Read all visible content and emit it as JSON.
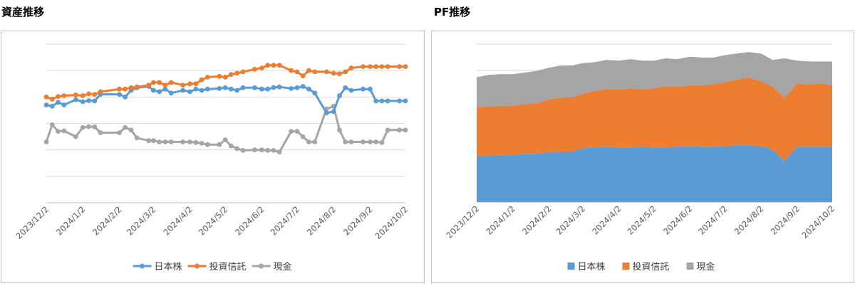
{
  "left_title": "資産推移",
  "right_title": "PF推移",
  "chart_data": [
    {
      "type": "line",
      "title": "",
      "xlabel": "",
      "ylabel": "",
      "ylim": [
        0,
        6
      ],
      "grid": true,
      "y_tick_labels_shown": false,
      "legend_position": "bottom",
      "x_tick_labels": [
        "2023/12/2",
        "2024/1/2",
        "2024/2/2",
        "2024/3/2",
        "2024/4/2",
        "2024/5/2",
        "2024/6/2",
        "2024/7/2",
        "2024/8/2",
        "2024/9/2",
        "2024/10/2"
      ],
      "x_start": "2023/12/2",
      "x_end": "2024/10/2",
      "series": [
        {
          "name": "日本株",
          "color": "#5b9bd5",
          "x": [
            "2023/12/2",
            "2023/12/7",
            "2023/12/12",
            "2023/12/17",
            "2023/12/27",
            "2024/1/2",
            "2024/1/7",
            "2024/1/12",
            "2024/1/17",
            "2024/2/2",
            "2024/2/7",
            "2024/2/12",
            "2024/2/17",
            "2024/2/27",
            "2024/3/2",
            "2024/3/7",
            "2024/3/12",
            "2024/3/17",
            "2024/3/27",
            "2024/4/2",
            "2024/4/7",
            "2024/4/12",
            "2024/4/17",
            "2024/4/27",
            "2024/5/2",
            "2024/5/7",
            "2024/5/12",
            "2024/5/17",
            "2024/5/27",
            "2024/6/2",
            "2024/6/7",
            "2024/6/12",
            "2024/6/17",
            "2024/6/27",
            "2024/7/2",
            "2024/7/7",
            "2024/7/12",
            "2024/7/17",
            "2024/7/27",
            "2024/8/2",
            "2024/8/7",
            "2024/8/12",
            "2024/8/17",
            "2024/8/27",
            "2024/9/2",
            "2024/9/7",
            "2024/9/12",
            "2024/9/17",
            "2024/9/27",
            "2024/10/2"
          ],
          "values": [
            3.7,
            3.65,
            3.8,
            3.7,
            3.9,
            3.82,
            3.86,
            3.85,
            4.1,
            4.1,
            4.0,
            4.25,
            4.35,
            4.4,
            4.25,
            4.2,
            4.3,
            4.15,
            4.25,
            4.2,
            4.3,
            4.25,
            4.3,
            4.32,
            4.35,
            4.3,
            4.25,
            4.35,
            4.35,
            4.3,
            4.3,
            4.36,
            4.38,
            4.32,
            4.35,
            4.4,
            4.3,
            4.15,
            3.4,
            3.45,
            4.05,
            4.35,
            4.25,
            4.3,
            4.3,
            3.85,
            3.85,
            3.85,
            3.85,
            3.85
          ]
        },
        {
          "name": "投資信託",
          "color": "#ed7d31",
          "x": [
            "2023/12/2",
            "2023/12/7",
            "2023/12/12",
            "2023/12/17",
            "2023/12/27",
            "2024/1/2",
            "2024/1/7",
            "2024/1/12",
            "2024/1/17",
            "2024/2/2",
            "2024/2/7",
            "2024/2/12",
            "2024/2/17",
            "2024/2/27",
            "2024/3/2",
            "2024/3/7",
            "2024/3/12",
            "2024/3/17",
            "2024/3/27",
            "2024/4/2",
            "2024/4/7",
            "2024/4/12",
            "2024/4/17",
            "2024/4/27",
            "2024/5/2",
            "2024/5/7",
            "2024/5/12",
            "2024/5/17",
            "2024/5/27",
            "2024/6/2",
            "2024/6/7",
            "2024/6/12",
            "2024/6/17",
            "2024/6/27",
            "2024/7/2",
            "2024/7/7",
            "2024/7/12",
            "2024/7/17",
            "2024/7/27",
            "2024/8/2",
            "2024/8/7",
            "2024/8/12",
            "2024/8/17",
            "2024/8/27",
            "2024/9/2",
            "2024/9/7",
            "2024/9/12",
            "2024/9/17",
            "2024/9/27",
            "2024/10/2"
          ],
          "values": [
            4.0,
            3.92,
            4.02,
            4.05,
            4.08,
            4.05,
            4.12,
            4.1,
            4.2,
            4.3,
            4.3,
            4.35,
            4.38,
            4.45,
            4.55,
            4.55,
            4.45,
            4.55,
            4.45,
            4.5,
            4.5,
            4.65,
            4.75,
            4.78,
            4.75,
            4.85,
            4.9,
            4.95,
            5.05,
            5.1,
            5.2,
            5.2,
            5.2,
            5.0,
            4.95,
            4.8,
            5.0,
            4.95,
            4.95,
            4.9,
            4.88,
            4.95,
            5.1,
            5.15,
            5.15,
            5.15,
            5.15,
            5.15,
            5.15,
            5.15
          ]
        },
        {
          "name": "現金",
          "color": "#a5a5a5",
          "x": [
            "2023/12/2",
            "2023/12/7",
            "2023/12/12",
            "2023/12/17",
            "2023/12/27",
            "2024/1/2",
            "2024/1/7",
            "2024/1/12",
            "2024/1/17",
            "2024/2/2",
            "2024/2/7",
            "2024/2/12",
            "2024/2/17",
            "2024/2/27",
            "2024/3/2",
            "2024/3/7",
            "2024/3/12",
            "2024/3/17",
            "2024/3/27",
            "2024/4/2",
            "2024/4/7",
            "2024/4/12",
            "2024/4/17",
            "2024/4/27",
            "2024/5/2",
            "2024/5/7",
            "2024/5/12",
            "2024/5/17",
            "2024/5/27",
            "2024/6/2",
            "2024/6/7",
            "2024/6/12",
            "2024/6/17",
            "2024/6/27",
            "2024/7/2",
            "2024/7/7",
            "2024/7/12",
            "2024/7/17",
            "2024/7/27",
            "2024/8/2",
            "2024/8/7",
            "2024/8/12",
            "2024/8/17",
            "2024/8/27",
            "2024/9/2",
            "2024/9/7",
            "2024/9/12",
            "2024/9/17",
            "2024/9/27",
            "2024/10/2"
          ],
          "values": [
            2.3,
            2.95,
            2.7,
            2.72,
            2.5,
            2.85,
            2.88,
            2.87,
            2.65,
            2.65,
            2.85,
            2.75,
            2.45,
            2.35,
            2.35,
            2.3,
            2.3,
            2.3,
            2.3,
            2.3,
            2.28,
            2.25,
            2.2,
            2.2,
            2.38,
            2.15,
            2.05,
            1.98,
            2.0,
            2.0,
            1.98,
            1.98,
            1.92,
            2.7,
            2.7,
            2.5,
            2.3,
            2.3,
            3.55,
            3.65,
            2.75,
            2.3,
            2.3,
            2.3,
            2.3,
            2.3,
            2.28,
            2.75,
            2.75,
            2.75
          ]
        }
      ]
    },
    {
      "type": "area",
      "stacked": true,
      "title": "",
      "xlabel": "",
      "ylabel": "",
      "ylim": [
        0,
        10
      ],
      "grid": true,
      "y_tick_labels_shown": false,
      "legend_position": "bottom",
      "x_tick_labels": [
        "2023/12/2",
        "2024/1/2",
        "2024/2/2",
        "2024/3/2",
        "2024/4/2",
        "2024/5/2",
        "2024/6/2",
        "2024/7/2",
        "2024/8/2",
        "2024/9/2",
        "2024/10/2"
      ],
      "x_start": "2023/12/2",
      "x_end": "2024/10/2",
      "x": [
        "2023/12/2",
        "2023/12/12",
        "2023/12/22",
        "2024/1/2",
        "2024/1/12",
        "2024/1/22",
        "2024/2/2",
        "2024/2/12",
        "2024/2/22",
        "2024/3/2",
        "2024/3/12",
        "2024/3/22",
        "2024/4/2",
        "2024/4/12",
        "2024/4/22",
        "2024/5/2",
        "2024/5/12",
        "2024/5/22",
        "2024/6/2",
        "2024/6/12",
        "2024/6/22",
        "2024/7/2",
        "2024/7/12",
        "2024/7/22",
        "2024/8/2",
        "2024/8/12",
        "2024/8/22",
        "2024/9/2",
        "2024/9/12",
        "2024/9/22",
        "2024/10/2"
      ],
      "series": [
        {
          "name": "日本株",
          "color": "#5b9bd5",
          "values": [
            2.9,
            2.95,
            2.95,
            3.0,
            3.05,
            3.05,
            3.15,
            3.2,
            3.2,
            3.4,
            3.45,
            3.5,
            3.45,
            3.45,
            3.5,
            3.45,
            3.45,
            3.5,
            3.55,
            3.5,
            3.5,
            3.55,
            3.6,
            3.6,
            3.55,
            3.3,
            2.6,
            3.5,
            3.5,
            3.5,
            3.5
          ]
        },
        {
          "name": "投資信託",
          "color": "#ed7d31",
          "values": [
            3.1,
            3.1,
            3.15,
            3.1,
            3.15,
            3.2,
            3.35,
            3.4,
            3.45,
            3.45,
            3.6,
            3.65,
            3.7,
            3.75,
            3.65,
            3.75,
            3.9,
            3.8,
            3.85,
            3.9,
            3.95,
            4.05,
            4.15,
            4.3,
            4.1,
            4.0,
            4.0,
            4.0,
            3.95,
            4.0,
            3.9
          ]
        },
        {
          "name": "現金",
          "color": "#a5a5a5",
          "values": [
            1.9,
            2.0,
            2.0,
            2.0,
            2.0,
            2.05,
            2.0,
            2.05,
            2.0,
            1.95,
            1.8,
            1.85,
            1.8,
            1.85,
            1.8,
            1.75,
            1.75,
            1.75,
            1.8,
            1.75,
            1.7,
            1.7,
            1.65,
            1.6,
            1.75,
            1.7,
            2.5,
            1.45,
            1.45,
            1.4,
            1.5
          ]
        }
      ]
    }
  ]
}
